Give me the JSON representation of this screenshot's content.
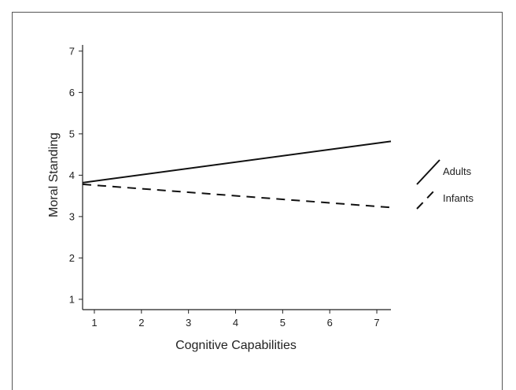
{
  "chart_data": {
    "type": "line",
    "title": "",
    "xlabel": "Cognitive Capabilities",
    "ylabel": "Moral Standing",
    "xlim": [
      0.75,
      7.3
    ],
    "ylim": [
      0.75,
      7.15
    ],
    "xticks": [
      1,
      2,
      3,
      4,
      5,
      6,
      7
    ],
    "yticks": [
      1,
      2,
      3,
      4,
      5,
      6,
      7
    ],
    "grid": false,
    "legend_position": "right",
    "series": [
      {
        "name": "Adults",
        "style": "solid",
        "color": "#111111",
        "x": [
          0.75,
          7.3
        ],
        "y": [
          3.82,
          4.82
        ]
      },
      {
        "name": "Infants",
        "style": "dashed",
        "color": "#111111",
        "x": [
          0.75,
          7.3
        ],
        "y": [
          3.78,
          3.22
        ]
      }
    ]
  }
}
